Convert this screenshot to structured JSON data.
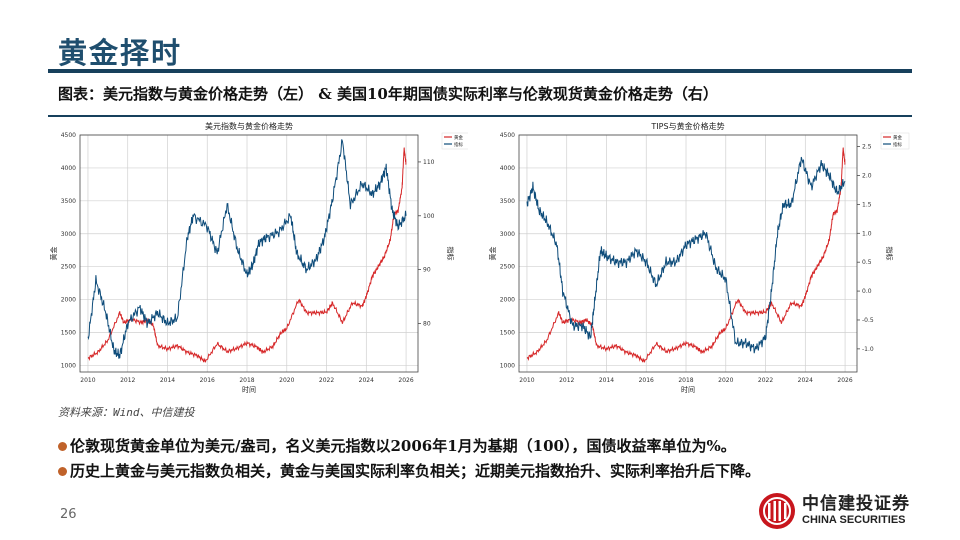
{
  "header": {
    "title": "黄金择时",
    "subtitle": "图表：美元指数与黄金价格走势（左） & 美国10年期国债实际利率与伦敦现货黄金价格走势（右）"
  },
  "source": "资料来源：Wind、中信建投",
  "bullets": [
    "伦敦现货黄金单位为美元/盎司，名义美元指数以2006年1月为基期（100），国债收益率单位为%。",
    "历史上黄金与美元指数负相关，黄金与美国实际利率负相关；近期美元指数抬升、实际利率抬升后下降。"
  ],
  "page_number": "26",
  "logo": {
    "cn": "中信建投证券",
    "en": "CHINA SECURITIES"
  },
  "colors": {
    "brand": "#1f4e6e",
    "gold_line": "#d62728",
    "index_line": "#0e4c7a",
    "bullet": "#c0622a"
  },
  "chart_data": [
    {
      "type": "line",
      "title": "美元指数与黄金价格走势",
      "xlabel": "时间",
      "ylabel": "黄金",
      "y2label": "指标",
      "x_ticks": [
        "2010",
        "2012",
        "2014",
        "2016",
        "2018",
        "2020",
        "2022",
        "2024",
        "2026"
      ],
      "y_ticks": [
        "1000",
        "1500",
        "2000",
        "2500",
        "3000",
        "3500",
        "4000",
        "4500"
      ],
      "y2_ticks": [
        "80",
        "90",
        "100",
        "110"
      ],
      "ylim": [
        900,
        4500
      ],
      "y2lim": [
        71,
        115
      ],
      "legend": [
        "黄金",
        "指标"
      ],
      "grid": true,
      "series": [
        {
          "name": "黄金",
          "axis": "left",
          "x": [
            2010.0,
            2010.5,
            2011.0,
            2011.6,
            2011.8,
            2012.2,
            2012.7,
            2013.0,
            2013.3,
            2013.5,
            2014.0,
            2014.5,
            2015.0,
            2015.5,
            2015.9,
            2016.5,
            2017.0,
            2017.5,
            2018.0,
            2018.5,
            2018.8,
            2019.3,
            2019.7,
            2020.0,
            2020.6,
            2021.0,
            2021.5,
            2022.0,
            2022.3,
            2022.8,
            2023.3,
            2023.8,
            2024.0,
            2024.3,
            2024.6,
            2024.9,
            2025.2,
            2025.4,
            2025.6,
            2025.8,
            2025.9,
            2026.0
          ],
          "values": [
            1110,
            1200,
            1380,
            1800,
            1650,
            1700,
            1650,
            1690,
            1600,
            1300,
            1250,
            1300,
            1200,
            1150,
            1060,
            1330,
            1210,
            1260,
            1340,
            1280,
            1200,
            1290,
            1490,
            1560,
            2000,
            1800,
            1800,
            1810,
            1950,
            1650,
            1950,
            1900,
            2050,
            2350,
            2500,
            2650,
            2900,
            3300,
            3350,
            3700,
            4300,
            4050
          ]
        },
        {
          "name": "指标",
          "axis": "right",
          "x": [
            2010.0,
            2010.4,
            2010.9,
            2011.3,
            2011.6,
            2012.0,
            2012.6,
            2013.0,
            2013.5,
            2014.0,
            2014.5,
            2015.0,
            2015.3,
            2016.0,
            2016.5,
            2017.0,
            2017.5,
            2018.0,
            2018.3,
            2018.6,
            2019.0,
            2019.6,
            2020.2,
            2020.5,
            2021.0,
            2021.5,
            2021.9,
            2022.3,
            2022.8,
            2023.2,
            2023.8,
            2024.3,
            2024.7,
            2025.0,
            2025.3,
            2025.6,
            2026.0
          ],
          "values": [
            77,
            88,
            82,
            75,
            74,
            80,
            83,
            80,
            82,
            80,
            81,
            96,
            100,
            98,
            93,
            102,
            94,
            89,
            91,
            95,
            96,
            97,
            100,
            93,
            90,
            92,
            96,
            103,
            114,
            102,
            106,
            104,
            106,
            109,
            101,
            98,
            100
          ]
        }
      ]
    },
    {
      "type": "line",
      "title": "TIPS与黄金价格走势",
      "xlabel": "时间",
      "ylabel": "黄金",
      "y2label": "指标",
      "x_ticks": [
        "2010",
        "2012",
        "2014",
        "2016",
        "2018",
        "2020",
        "2022",
        "2024",
        "2026"
      ],
      "y_ticks": [
        "1000",
        "1500",
        "2000",
        "2500",
        "3000",
        "3500",
        "4000",
        "4500"
      ],
      "y2_ticks": [
        "-1.0",
        "-0.5",
        "0.0",
        "0.5",
        "1.0",
        "1.5",
        "2.0",
        "2.5"
      ],
      "ylim": [
        900,
        4500
      ],
      "y2lim": [
        -1.4,
        2.7
      ],
      "legend": [
        "黄金",
        "指标"
      ],
      "grid": true,
      "series": [
        {
          "name": "黄金",
          "axis": "left",
          "x": [
            2010.0,
            2010.5,
            2011.0,
            2011.6,
            2011.8,
            2012.2,
            2012.7,
            2013.0,
            2013.3,
            2013.5,
            2014.0,
            2014.5,
            2015.0,
            2015.5,
            2015.9,
            2016.5,
            2017.0,
            2017.5,
            2018.0,
            2018.5,
            2018.8,
            2019.3,
            2019.7,
            2020.0,
            2020.6,
            2021.0,
            2021.5,
            2022.0,
            2022.3,
            2022.8,
            2023.3,
            2023.8,
            2024.0,
            2024.3,
            2024.6,
            2024.9,
            2025.2,
            2025.4,
            2025.6,
            2025.8,
            2025.9,
            2026.0
          ],
          "values": [
            1110,
            1200,
            1380,
            1800,
            1650,
            1700,
            1650,
            1690,
            1600,
            1300,
            1250,
            1300,
            1200,
            1150,
            1060,
            1330,
            1210,
            1260,
            1340,
            1280,
            1200,
            1290,
            1490,
            1560,
            2000,
            1800,
            1800,
            1810,
            1950,
            1650,
            1950,
            1900,
            2050,
            2350,
            2500,
            2650,
            2900,
            3300,
            3350,
            3700,
            4300,
            4050
          ]
        },
        {
          "name": "指标",
          "axis": "right",
          "x": [
            2010.0,
            2010.3,
            2010.6,
            2011.0,
            2011.5,
            2011.8,
            2012.3,
            2012.8,
            2013.2,
            2013.4,
            2013.7,
            2014.0,
            2014.5,
            2015.0,
            2015.5,
            2016.0,
            2016.5,
            2017.0,
            2017.5,
            2018.0,
            2018.5,
            2019.0,
            2019.5,
            2020.0,
            2020.5,
            2021.0,
            2021.5,
            2022.0,
            2022.3,
            2022.6,
            2022.9,
            2023.3,
            2023.8,
            2024.3,
            2024.8,
            2025.2,
            2025.6,
            2026.0
          ],
          "values": [
            1.5,
            1.8,
            1.4,
            1.2,
            0.8,
            0.0,
            -0.6,
            -0.6,
            -0.8,
            -0.2,
            0.7,
            0.6,
            0.5,
            0.5,
            0.7,
            0.5,
            0.1,
            0.5,
            0.5,
            0.8,
            0.9,
            1.0,
            0.4,
            0.2,
            -0.9,
            -0.9,
            -1.0,
            -0.8,
            0.0,
            1.0,
            1.5,
            1.5,
            2.3,
            1.8,
            2.2,
            2.0,
            1.7,
            1.9
          ]
        }
      ]
    }
  ]
}
